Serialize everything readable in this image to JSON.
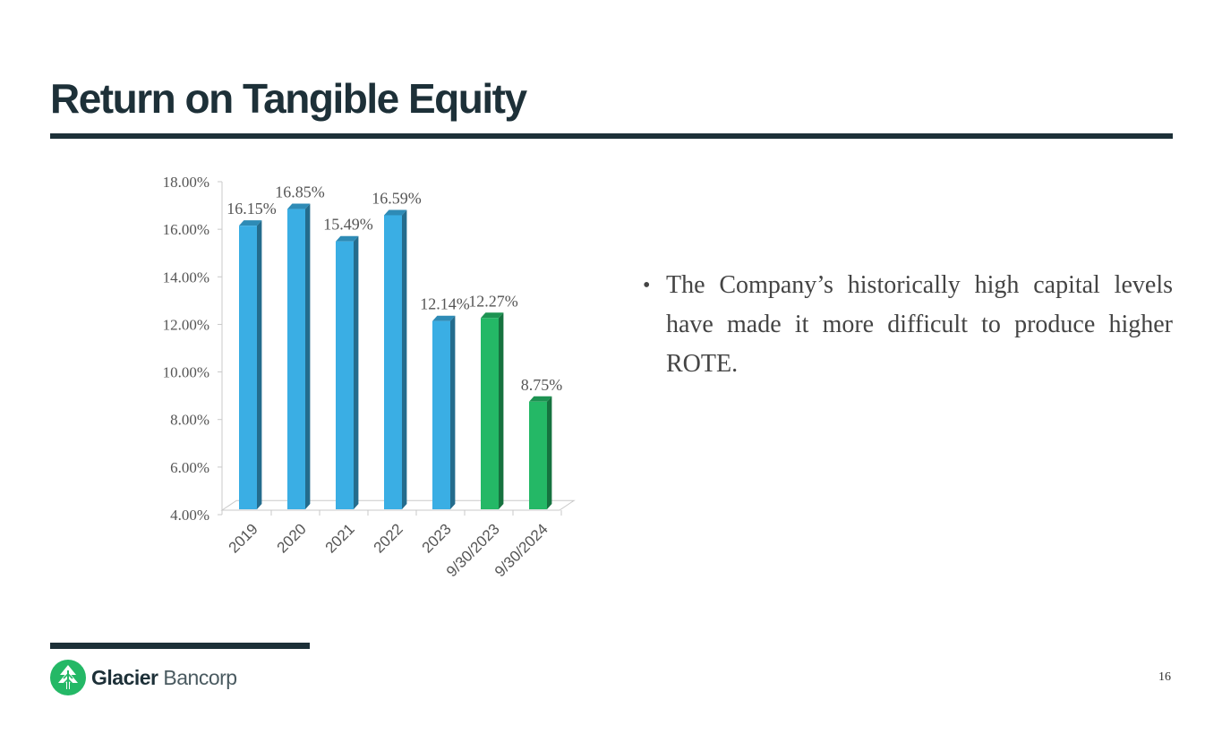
{
  "slide": {
    "title": "Return on Tangible Equity",
    "bullets": [
      "The Company’s historically high capital levels have made it more difficult to produce higher ROTE."
    ],
    "page_number": "16"
  },
  "logo": {
    "name_bold": "Glacier",
    "name_light": "Bancorp"
  },
  "chart_data": {
    "type": "bar",
    "title": "",
    "xlabel": "",
    "ylabel": "",
    "categories": [
      "2019",
      "2020",
      "2021",
      "2022",
      "2023",
      "9/30/2023",
      "9/30/2024"
    ],
    "values": [
      16.15,
      16.85,
      15.49,
      16.59,
      12.14,
      12.27,
      8.75
    ],
    "value_labels": [
      "16.15%",
      "16.85%",
      "15.49%",
      "16.59%",
      "12.14%",
      "12.27%",
      "8.75%"
    ],
    "bar_colors": [
      "#3aaee4",
      "#3aaee4",
      "#3aaee4",
      "#3aaee4",
      "#3aaee4",
      "#24b866",
      "#24b866"
    ],
    "ylim": [
      4,
      18
    ],
    "yticks": [
      4,
      6,
      8,
      10,
      12,
      14,
      16,
      18
    ],
    "ytick_labels": [
      "4.00%",
      "6.00%",
      "8.00%",
      "10.00%",
      "12.00%",
      "14.00%",
      "16.00%",
      "18.00%"
    ],
    "grid": false,
    "legend": "none"
  },
  "colors": {
    "title": "#1d3038",
    "body_text": "#444444",
    "bar_blue": "#3aaee4",
    "bar_green": "#24b866",
    "logo_green": "#24b866"
  }
}
